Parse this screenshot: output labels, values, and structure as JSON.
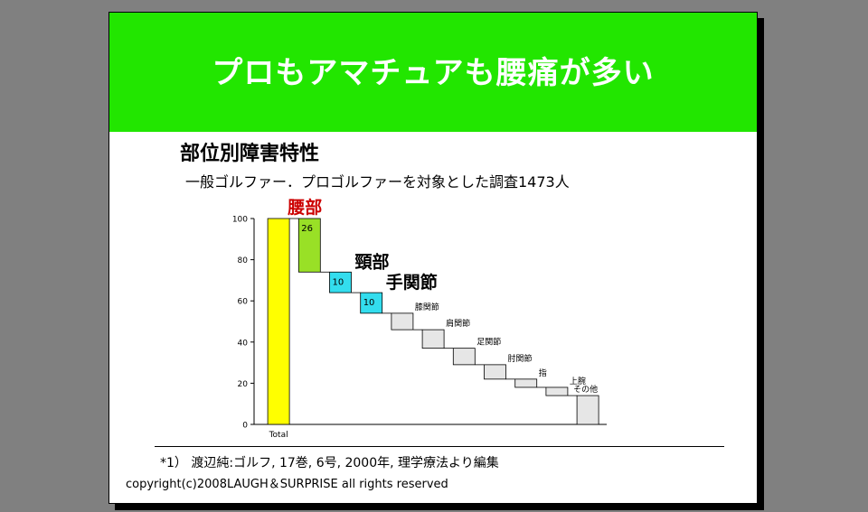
{
  "slide": {
    "title": "プロもアマチュアも腰痛が多い",
    "subtitle": "部位別障害特性",
    "description": "一般ゴルファー．プロゴルファーを対象とした調査1473人",
    "footnote": "*1） 渡辺純:ゴルフ, 17巻, 6号, 2000年, 理学療法より編集",
    "copyright": "copyright(c)2008LAUGH＆SURPRISE all rights reserved",
    "colors": {
      "header_bg": "#22e600",
      "total_bar": "#ffff00",
      "lower_back_bar": "#99e026",
      "neck_wrist_bar": "#33ddee",
      "other_bars": "#e6e6e6",
      "highlight_text": "#cc0000"
    }
  },
  "chart_data": {
    "type": "bar",
    "subtype": "waterfall",
    "ylim": [
      0,
      100
    ],
    "yticks": [
      0,
      20,
      40,
      60,
      80,
      100
    ],
    "categories": [
      "Total",
      "腰部",
      "頸部",
      "手関節",
      "膝関節",
      "肩関節",
      "足関節",
      "肘関節",
      "指",
      "上腕",
      "その他"
    ],
    "values": [
      100,
      26,
      10,
      10,
      8,
      9,
      8,
      7,
      4,
      4,
      14
    ],
    "data_labels": [
      "",
      "26",
      "10",
      "10",
      "",
      "",
      "",
      "",
      "",
      "",
      ""
    ],
    "x_tick_labels": [
      "Total"
    ],
    "grid": false,
    "legend": "none"
  }
}
